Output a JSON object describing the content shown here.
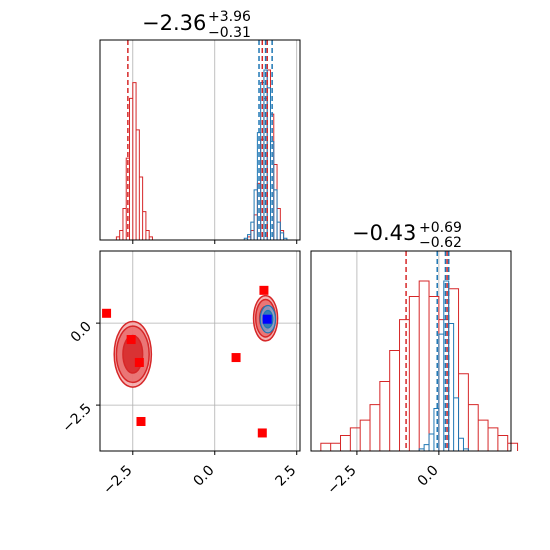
{
  "chart_data": {
    "type": "corner",
    "colors": {
      "red": "#d62728",
      "blue": "#1f77b4",
      "marker_red": "#ff0000",
      "marker_blue": "#0000ff",
      "grid": "#b0b0b0"
    },
    "titles": [
      {
        "value": "−2.36",
        "plus": "+3.96",
        "minus": "−0.31"
      },
      {
        "value": "−0.43",
        "plus": "+0.69",
        "minus": "−0.62"
      }
    ],
    "x_ticks": [
      {
        "value": -2.5,
        "label": "−2.5"
      },
      {
        "value": 0.0,
        "label": "0.0"
      },
      {
        "value": 2.5,
        "label": "2.5"
      }
    ],
    "y_ticks": [
      {
        "value": 0.0,
        "label": "0.0"
      },
      {
        "value": -2.5,
        "label": "−2.5"
      }
    ],
    "param1_range": [
      -3.5,
      2.6
    ],
    "param2_range": [
      -3.9,
      2.2
    ],
    "panel_top_left": {
      "type": "histogram",
      "red_bins_x": [
        -3.0,
        -2.9,
        -2.8,
        -2.7,
        -2.6,
        -2.5,
        -2.4,
        -2.3,
        -2.2,
        -2.1,
        -2.0,
        1.0,
        1.1,
        1.2,
        1.3,
        1.4,
        1.5,
        1.6,
        1.7,
        1.8,
        1.9,
        2.0
      ],
      "red_counts": [
        1,
        3,
        10,
        26,
        45,
        50,
        35,
        20,
        9,
        3,
        1,
        1,
        3,
        8,
        18,
        32,
        45,
        54,
        40,
        24,
        10,
        3
      ],
      "blue_bins_x": [
        0.9,
        1.0,
        1.1,
        1.2,
        1.3,
        1.4,
        1.5,
        1.6,
        1.7,
        1.8,
        1.9,
        2.0,
        2.1
      ],
      "blue_counts": [
        1,
        3,
        10,
        28,
        60,
        88,
        95,
        85,
        55,
        28,
        10,
        4,
        1
      ],
      "red_lines": [
        -2.65,
        1.45,
        1.6
      ],
      "blue_lines": [
        1.35,
        1.55,
        1.75
      ]
    },
    "panel_bottom_right": {
      "type": "histogram",
      "red_bins_x": [
        -3.9,
        -3.6,
        -3.3,
        -3.0,
        -2.7,
        -2.4,
        -2.1,
        -1.8,
        -1.5,
        -1.2,
        -0.9,
        -0.6,
        -0.3,
        0.0,
        0.3,
        0.6,
        0.9,
        1.2,
        1.5,
        1.8,
        2.1
      ],
      "red_counts": [
        0,
        1,
        1,
        2,
        3,
        4,
        6,
        9,
        13,
        17,
        20,
        22,
        20,
        17,
        21,
        10,
        6,
        4,
        3,
        2,
        1
      ],
      "blue_bins_x": [
        -0.6,
        -0.45,
        -0.3,
        -0.15,
        0.0,
        0.15,
        0.3,
        0.45,
        0.6,
        0.75
      ],
      "blue_counts": [
        1,
        3,
        8,
        20,
        55,
        80,
        60,
        25,
        6,
        1
      ],
      "red_lines": [
        -1.0,
        0.25,
        0.3
      ],
      "blue_lines": [
        -0.05,
        0.2,
        0.3
      ]
    },
    "panel_bottom_left": {
      "type": "contour-scatter",
      "red_clusters": [
        {
          "cx": -2.5,
          "cy": -0.95,
          "contours": [
            [
              0.85,
              2.1
            ],
            [
              0.75,
              1.8
            ],
            [
              0.45,
              1.2
            ]
          ]
        },
        {
          "cx": 1.55,
          "cy": 0.15,
          "contours": [
            [
              0.55,
              1.45
            ],
            [
              0.45,
              1.2
            ],
            [
              0.27,
              0.75
            ]
          ]
        }
      ],
      "blue_cluster": {
        "cx": 1.62,
        "cy": 0.12,
        "contours": [
          [
            0.28,
            0.5
          ],
          [
            0.18,
            0.32
          ]
        ]
      },
      "red_markers": [
        [
          -3.3,
          0.3
        ],
        [
          -2.55,
          -0.5
        ],
        [
          -2.3,
          -1.2
        ],
        [
          -2.25,
          -3.0
        ],
        [
          0.65,
          -1.05
        ],
        [
          1.45,
          -3.35
        ],
        [
          1.5,
          1.0
        ]
      ],
      "blue_markers": [
        [
          1.6,
          0.12
        ]
      ]
    }
  }
}
